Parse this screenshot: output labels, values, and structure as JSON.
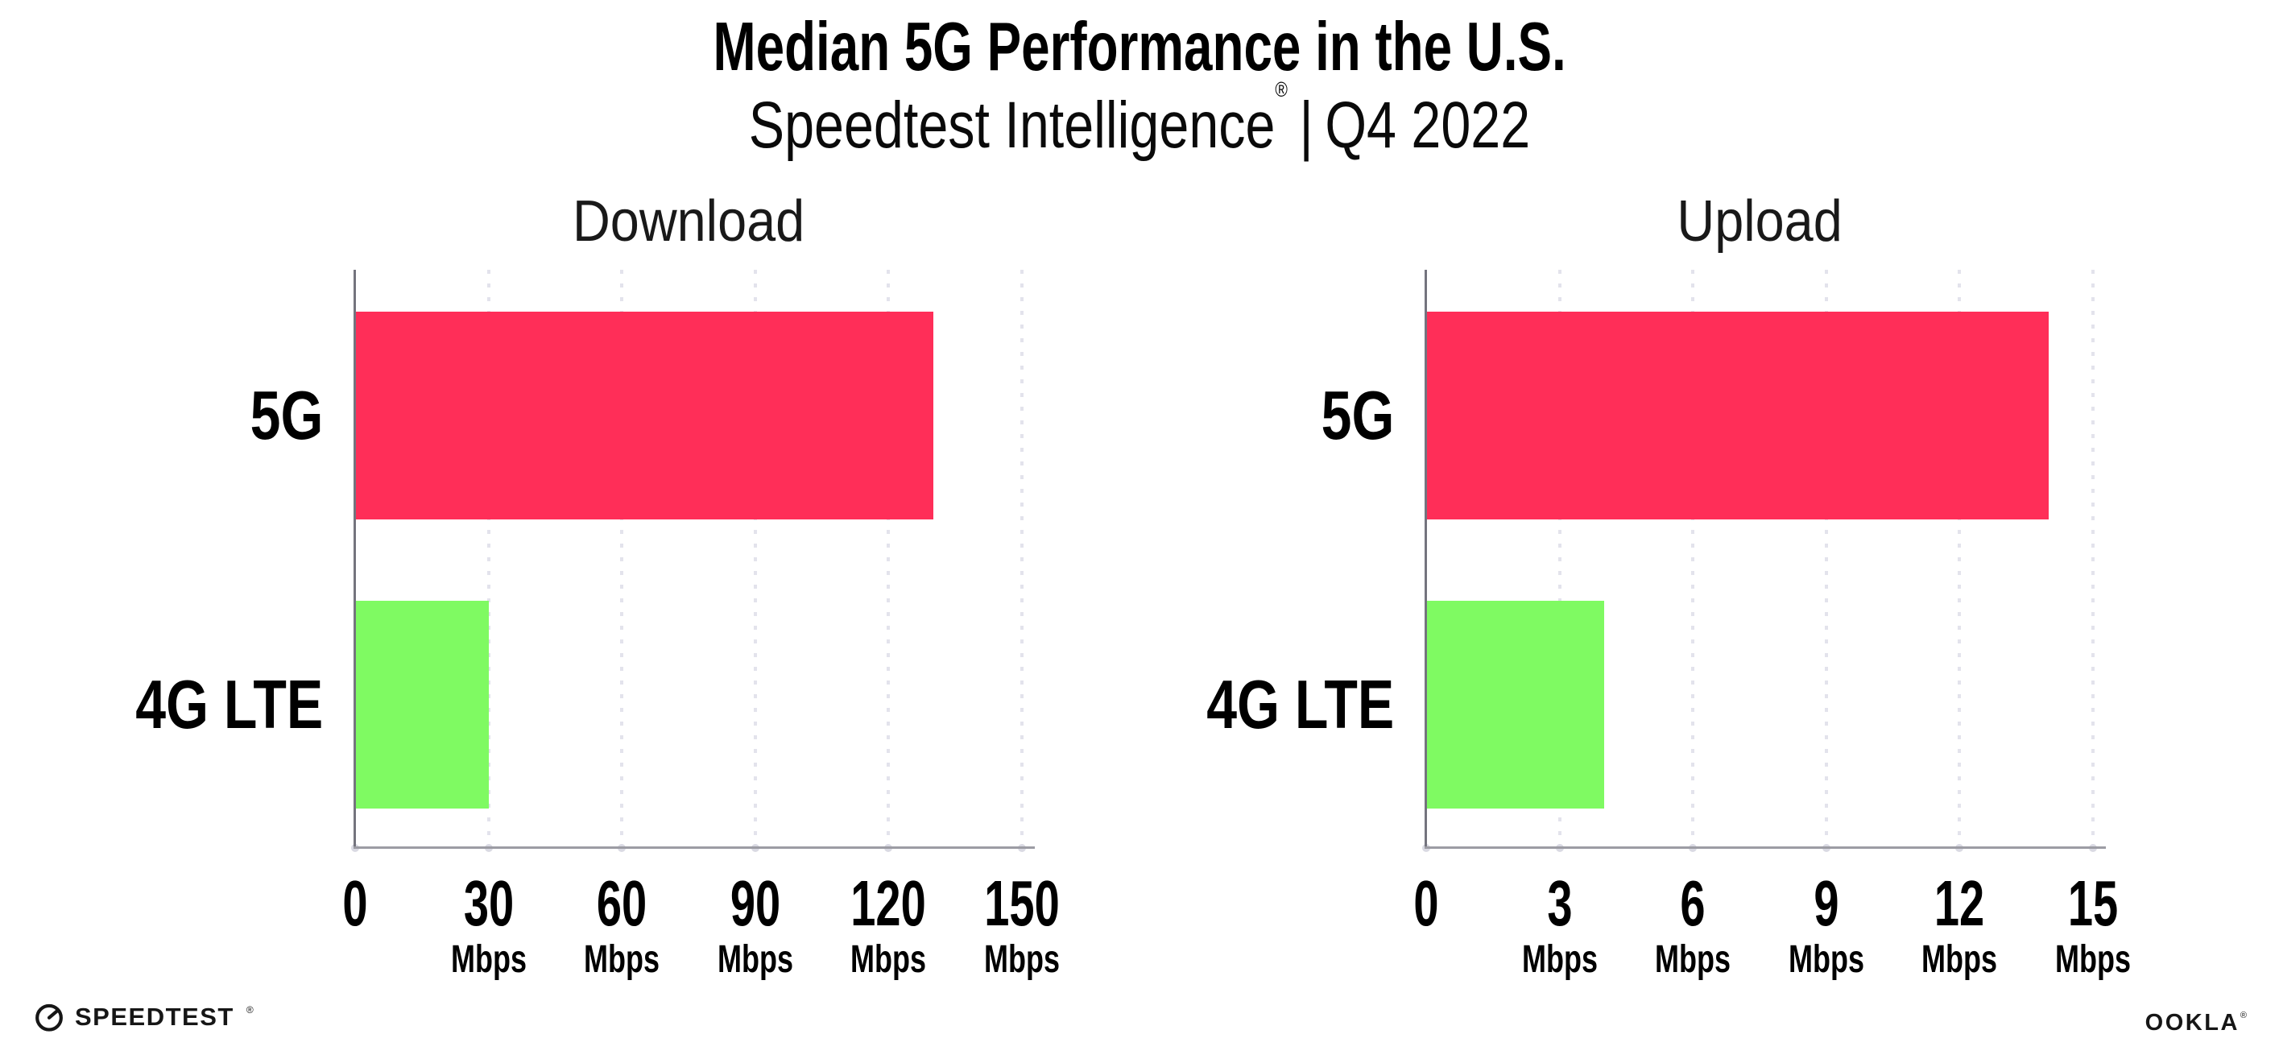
{
  "header": {
    "title": "Median 5G Performance in the U.S.",
    "subtitle_brand": "Speedtest Intelligence",
    "subtitle_reg": "®",
    "subtitle_separator": "|",
    "subtitle_period": "Q4 2022"
  },
  "colors": {
    "bar_5g": "#FF2E58",
    "bar_4g_lte": "#7FFA62",
    "y_axis": "#74747e",
    "x_axis": "#9c9ca4",
    "gridline": "#e3e3ec"
  },
  "chart_data": [
    {
      "type": "bar",
      "orientation": "horizontal",
      "title": "Download",
      "categories": [
        "5G",
        "4G LTE"
      ],
      "values": [
        130,
        30
      ],
      "unit": "Mbps",
      "xlim": [
        0,
        150
      ],
      "ticks": [
        0,
        30,
        60,
        90,
        120,
        150
      ],
      "bar_colors": [
        "#FF2E58",
        "#7FFA62"
      ],
      "grid": "dotted-vertical",
      "legend": "none"
    },
    {
      "type": "bar",
      "orientation": "horizontal",
      "title": "Upload",
      "categories": [
        "5G",
        "4G LTE"
      ],
      "values": [
        14,
        4
      ],
      "unit": "Mbps",
      "xlim": [
        0,
        15
      ],
      "ticks": [
        0,
        3,
        6,
        9,
        12,
        15
      ],
      "bar_colors": [
        "#FF2E58",
        "#7FFA62"
      ],
      "grid": "dotted-vertical",
      "legend": "none"
    }
  ],
  "footer": {
    "speedtest_label": "SPEEDTEST",
    "speedtest_reg": "®",
    "ookla_label": "OOKLA",
    "ookla_reg": "®"
  }
}
